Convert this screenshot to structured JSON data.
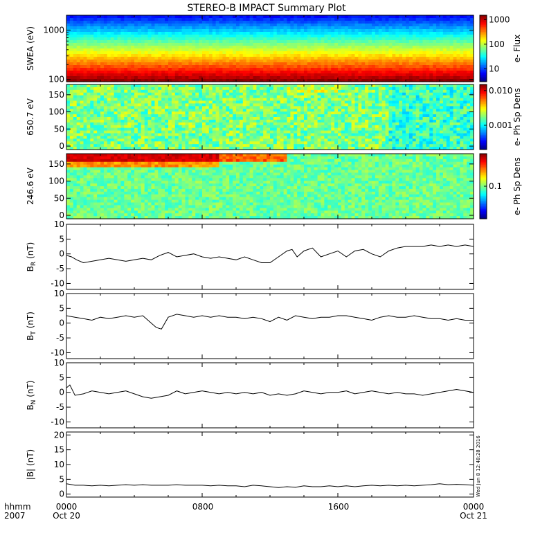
{
  "title": "STEREO-B IMPACT Summary Plot",
  "footer": {
    "time_label": "hhmm",
    "year_label": "2007",
    "x_tick_labels": [
      "0000",
      "0800",
      "1600",
      "0000"
    ],
    "x_date_labels": [
      "Oct 20",
      "",
      "",
      "Oct 21"
    ],
    "timestamp": "Wed Jun  8 12:48:28 2016"
  },
  "chart_data": [
    {
      "type": "heatmap",
      "id": "swea",
      "ylabel": "SWEA (eV)",
      "yscale": "log",
      "ylim": [
        90,
        2000
      ],
      "y_ticks": [
        {
          "v": 1000,
          "label": "1000"
        },
        {
          "v": 100,
          "label": "100"
        }
      ],
      "colorbar_label": "e- Flux",
      "colorbar_scale": "log",
      "colorbar_range": [
        3,
        1500
      ],
      "colorbar_ticks": [
        {
          "v": 1000,
          "label": "1000"
        },
        {
          "v": 100,
          "label": "100"
        },
        {
          "v": 10,
          "label": "10"
        }
      ],
      "description_rows": [
        "red/orange below ~250 eV",
        "yellow-green 300-600 eV",
        "cyan-blue above 800 eV"
      ]
    },
    {
      "type": "heatmap",
      "id": "pad650",
      "ylabel": "650.7 eV",
      "ylim": [
        -10,
        180
      ],
      "y_ticks": [
        {
          "v": 150,
          "label": "150"
        },
        {
          "v": 100,
          "label": "100"
        },
        {
          "v": 50,
          "label": "50"
        },
        {
          "v": 0,
          "label": "0"
        }
      ],
      "colorbar_label": "e- Ph Sp Dens",
      "colorbar_scale": "log",
      "colorbar_range": [
        0.0002,
        0.015
      ],
      "colorbar_ticks": [
        {
          "v": 0.01,
          "label": "0.010"
        },
        {
          "v": 0.001,
          "label": "0.001"
        }
      ]
    },
    {
      "type": "heatmap",
      "id": "pad246",
      "ylabel": "246.6 eV",
      "ylim": [
        -10,
        180
      ],
      "y_ticks": [
        {
          "v": 150,
          "label": "150"
        },
        {
          "v": 100,
          "label": "100"
        },
        {
          "v": 50,
          "label": "50"
        },
        {
          "v": 0,
          "label": "0"
        }
      ],
      "colorbar_label": "e- Ph Sp Dens",
      "colorbar_scale": "log",
      "colorbar_range": [
        0.02,
        0.5
      ],
      "colorbar_ticks": [
        {
          "v": 0.1,
          "label": "0.1"
        }
      ]
    },
    {
      "type": "line",
      "id": "br",
      "ylabel": "B",
      "ylabel_sub": "R",
      "ylabel_unit": " (nT)",
      "ylim": [
        -12,
        10
      ],
      "y_ticks": [
        {
          "v": 10,
          "label": "10"
        },
        {
          "v": 5,
          "label": "5"
        },
        {
          "v": 0,
          "label": "0"
        },
        {
          "v": -5,
          "label": "-5"
        },
        {
          "v": -10,
          "label": "-10"
        }
      ],
      "x_hours": [
        0,
        0.3,
        0.6,
        1,
        1.5,
        2,
        2.5,
        3,
        3.5,
        4,
        4.5,
        5,
        5.5,
        6,
        6.5,
        7,
        7.5,
        8,
        8.5,
        9,
        9.5,
        10,
        10.5,
        11,
        11.5,
        12,
        12.5,
        13,
        13.3,
        13.6,
        14,
        14.5,
        15,
        15.5,
        16,
        16.5,
        17,
        17.5,
        18,
        18.5,
        19,
        19.5,
        20,
        20.5,
        21,
        21.5,
        22,
        22.5,
        23,
        23.5,
        24
      ],
      "values": [
        -0.5,
        -1,
        -2,
        -3,
        -2.5,
        -2,
        -1.5,
        -2,
        -2.5,
        -2,
        -1.5,
        -2,
        -0.5,
        0.5,
        -1,
        -0.5,
        0,
        -1,
        -1.5,
        -1,
        -1.5,
        -2,
        -1,
        -2,
        -3,
        -3,
        -1,
        1,
        1.5,
        -1,
        1,
        2,
        -1,
        0,
        1,
        -1,
        1,
        1.5,
        0,
        -1,
        1,
        2,
        2.5,
        2.5,
        2.5,
        3,
        2.5,
        3,
        2.5,
        3,
        2.5
      ]
    },
    {
      "type": "line",
      "id": "bt",
      "ylabel": "B",
      "ylabel_sub": "T",
      "ylabel_unit": " (nT)",
      "ylim": [
        -12,
        10
      ],
      "y_ticks": [
        {
          "v": 10,
          "label": "10"
        },
        {
          "v": 5,
          "label": "5"
        },
        {
          "v": 0,
          "label": "0"
        },
        {
          "v": -5,
          "label": "-5"
        },
        {
          "v": -10,
          "label": "-10"
        }
      ],
      "x_hours": [
        0,
        0.5,
        1,
        1.5,
        2,
        2.5,
        3,
        3.5,
        4,
        4.5,
        5,
        5.3,
        5.6,
        6,
        6.5,
        7,
        7.5,
        8,
        8.5,
        9,
        9.5,
        10,
        10.5,
        11,
        11.5,
        12,
        12.5,
        13,
        13.5,
        14,
        14.5,
        15,
        15.5,
        16,
        16.5,
        17,
        17.5,
        18,
        18.5,
        19,
        19.5,
        20,
        20.5,
        21,
        21.5,
        22,
        22.5,
        23,
        23.5,
        24
      ],
      "values": [
        2.5,
        2,
        1.5,
        1,
        2,
        1.5,
        2,
        2.5,
        2,
        2.5,
        0,
        -1.5,
        -2,
        2,
        3,
        2.5,
        2,
        2.5,
        2,
        2.5,
        2,
        2,
        1.5,
        2,
        1.5,
        0.5,
        2,
        1,
        2.5,
        2,
        1.5,
        2,
        2,
        2.5,
        2.5,
        2,
        1.5,
        1,
        2,
        2.5,
        2,
        2,
        2.5,
        2,
        1.5,
        1.5,
        1,
        1.5,
        1,
        1
      ]
    },
    {
      "type": "line",
      "id": "bn",
      "ylabel": "B",
      "ylabel_sub": "N",
      "ylabel_unit": " (nT)",
      "ylim": [
        -12,
        10
      ],
      "y_ticks": [
        {
          "v": 10,
          "label": "10"
        },
        {
          "v": 5,
          "label": "5"
        },
        {
          "v": 0,
          "label": "0"
        },
        {
          "v": -5,
          "label": "-5"
        },
        {
          "v": -10,
          "label": "-10"
        }
      ],
      "x_hours": [
        0,
        0.2,
        0.5,
        1,
        1.5,
        2,
        2.5,
        3,
        3.5,
        4,
        4.5,
        5,
        5.5,
        6,
        6.5,
        7,
        7.5,
        8,
        8.5,
        9,
        9.5,
        10,
        10.5,
        11,
        11.5,
        12,
        12.5,
        13,
        13.5,
        14,
        14.5,
        15,
        15.5,
        16,
        16.5,
        17,
        17.5,
        18,
        18.5,
        19,
        19.5,
        20,
        20.5,
        21,
        21.5,
        22,
        22.5,
        23,
        23.5,
        24
      ],
      "values": [
        1.5,
        2.5,
        -1,
        -0.5,
        0.5,
        0,
        -0.5,
        0,
        0.5,
        -0.5,
        -1.5,
        -2,
        -1.5,
        -1,
        0.5,
        -0.5,
        0,
        0.5,
        0,
        -0.5,
        0,
        -0.5,
        0,
        -0.5,
        0,
        -1,
        -0.5,
        -1,
        -0.5,
        0.5,
        0,
        -0.5,
        0,
        0,
        0.5,
        -0.5,
        0,
        0.5,
        0,
        -0.5,
        0,
        -0.5,
        -0.5,
        -1,
        -0.5,
        0,
        0.5,
        1,
        0.5,
        0
      ]
    },
    {
      "type": "line",
      "id": "bmag",
      "ylabel": "|B| (nT)",
      "ylim": [
        -1,
        21
      ],
      "y_ticks": [
        {
          "v": 20,
          "label": "20"
        },
        {
          "v": 15,
          "label": "15"
        },
        {
          "v": 10,
          "label": "10"
        },
        {
          "v": 5,
          "label": "5"
        },
        {
          "v": 0,
          "label": "0"
        }
      ],
      "x_hours": [
        0,
        0.5,
        1,
        1.5,
        2,
        2.5,
        3,
        3.5,
        4,
        4.5,
        5,
        5.5,
        6,
        6.5,
        7,
        7.5,
        8,
        8.5,
        9,
        9.5,
        10,
        10.5,
        11,
        11.5,
        12,
        12.5,
        13,
        13.5,
        14,
        14.5,
        15,
        15.5,
        16,
        16.5,
        17,
        17.5,
        18,
        18.5,
        19,
        19.5,
        20,
        20.5,
        21,
        21.5,
        22,
        22.5,
        23,
        23.5,
        24
      ],
      "values": [
        3.5,
        3,
        3,
        2.8,
        3,
        2.8,
        3,
        3.2,
        3,
        3.2,
        3,
        3,
        3,
        3.2,
        3,
        3,
        3,
        2.8,
        3,
        2.8,
        2.8,
        2.5,
        3,
        2.8,
        2.5,
        2.2,
        2.5,
        2.3,
        2.8,
        2.5,
        2.5,
        2.8,
        2.5,
        2.8,
        2.5,
        2.8,
        3,
        2.8,
        3,
        2.8,
        3,
        2.8,
        3,
        3.2,
        3.5,
        3.2,
        3.3,
        3.2,
        3
      ]
    }
  ]
}
